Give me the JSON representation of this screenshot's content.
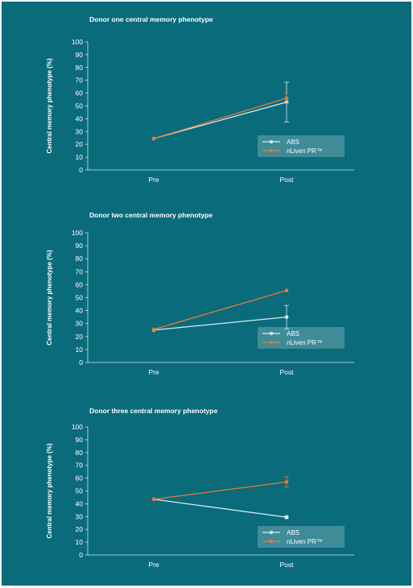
{
  "chart_data": [
    {
      "type": "line",
      "title": "Donor one central memory phenotype",
      "ylabel": "Central memory phenotype (%)",
      "categories": [
        "Pre",
        "Post"
      ],
      "ylim": [
        0,
        100
      ],
      "yticks": [
        0,
        10,
        20,
        30,
        40,
        50,
        60,
        70,
        80,
        90,
        100
      ],
      "series": [
        {
          "name": "ABS",
          "values": [
            24.5,
            53
          ],
          "error": [
            null,
            15.5
          ],
          "color": "#d6eef3",
          "marker": "circle"
        },
        {
          "name": "nLiven PR™",
          "values": [
            24.5,
            56
          ],
          "error": [
            null,
            4
          ],
          "color": "#e9793a",
          "marker": "circle"
        }
      ],
      "legend": "bottom-right"
    },
    {
      "type": "line",
      "title": "Donor two central memory phenotype",
      "ylabel": "Central memory phenotype (%)",
      "categories": [
        "Pre",
        "Post"
      ],
      "ylim": [
        0,
        100
      ],
      "yticks": [
        0,
        10,
        20,
        30,
        40,
        50,
        60,
        70,
        80,
        90,
        100
      ],
      "series": [
        {
          "name": "ABS",
          "values": [
            25,
            35
          ],
          "error": [
            null,
            9
          ],
          "color": "#d6eef3",
          "marker": "circle"
        },
        {
          "name": "nLiven PR™",
          "values": [
            25.5,
            55.5
          ],
          "error": [
            null,
            null
          ],
          "color": "#e9793a",
          "marker": "circle"
        }
      ],
      "legend": "bottom-right"
    },
    {
      "type": "line",
      "title": "Donor three central memory phenotype",
      "ylabel": "Central memory phenotype (%)",
      "categories": [
        "Pre",
        "Post"
      ],
      "ylim": [
        0,
        100
      ],
      "yticks": [
        0,
        10,
        20,
        30,
        40,
        50,
        60,
        70,
        80,
        90,
        100
      ],
      "series": [
        {
          "name": "ABS",
          "values": [
            43.5,
            29.5
          ],
          "error": [
            null,
            null
          ],
          "color": "#d6eef3",
          "marker": "square"
        },
        {
          "name": "nLiven PR™",
          "values": [
            43.5,
            57
          ],
          "error": [
            null,
            4
          ],
          "color": "#e9793a",
          "marker": "circle"
        }
      ],
      "legend": "bottom-right"
    }
  ]
}
